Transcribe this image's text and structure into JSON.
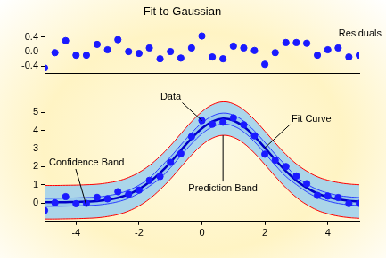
{
  "chart_data": [
    {
      "type": "scatter",
      "title": "Fit to Gaussian",
      "tick_labels": "y",
      "x": [
        -5,
        -4.67,
        -4.33,
        -4,
        -3.67,
        -3.33,
        -3,
        -2.67,
        -2.33,
        -2,
        -1.67,
        -1.33,
        -1,
        -0.67,
        -0.33,
        0,
        0.33,
        0.67,
        1,
        1.33,
        1.67,
        2,
        2.33,
        2.67,
        3,
        3.33,
        3.67,
        4,
        4.33,
        4.67,
        5
      ],
      "xlim": [
        -5,
        5
      ],
      "ylim": [
        -0.6,
        0.7
      ],
      "yticks": [
        -0.4,
        {
          "value": 0,
          "label": "0.0"
        },
        0.4
      ],
      "series": [
        {
          "name": "Residuals",
          "type": "scatter",
          "color": "#1a1aff",
          "marker": "circle",
          "values": [
            -0.45,
            -0.03,
            0.3,
            -0.1,
            -0.1,
            0.2,
            0.05,
            0.33,
            0,
            -0.05,
            0.1,
            -0.2,
            0,
            -0.18,
            0.1,
            0.43,
            -0.15,
            -0.2,
            0.15,
            0.1,
            0.03,
            -0.35,
            -0.03,
            0.25,
            0.25,
            0.23,
            -0.1,
            0.05,
            0.1,
            -0.15,
            -0.1
          ]
        }
      ]
    },
    {
      "type": "line",
      "grid": false,
      "x": [
        -5,
        -4.67,
        -4.33,
        -4,
        -3.67,
        -3.33,
        -3,
        -2.67,
        -2.33,
        -2,
        -1.67,
        -1.33,
        -1,
        -0.67,
        -0.33,
        0,
        0.33,
        0.67,
        1,
        1.33,
        1.67,
        2,
        2.33,
        2.67,
        3,
        3.33,
        3.67,
        4,
        4.33,
        4.67,
        5
      ],
      "xlim": [
        -5,
        5
      ],
      "ylim": [
        -1,
        6.2
      ],
      "xticks": [
        -4,
        -2,
        0,
        2,
        4
      ],
      "yticks": [
        0,
        1,
        2,
        3,
        4,
        5
      ],
      "series": [
        {
          "name": "Prediction Band",
          "type": "band",
          "color": "#ff0000",
          "upper": [
            0.97,
            0.97,
            0.98,
            0.99,
            1.01,
            1.04,
            1.11,
            1.22,
            1.41,
            1.69,
            2.07,
            2.58,
            3.16,
            3.82,
            4.48,
            5.03,
            5.41,
            5.57,
            5.46,
            5.13,
            4.59,
            3.96,
            3.31,
            2.68,
            2.16,
            1.76,
            1.45,
            1.26,
            1.13,
            1.05,
            1.01
          ],
          "lower": [
            -0.87,
            -0.87,
            -0.86,
            -0.85,
            -0.83,
            -0.8,
            -0.73,
            -0.62,
            -0.43,
            -0.15,
            0.23,
            0.74,
            1.32,
            1.98,
            2.64,
            3.19,
            3.57,
            3.73,
            3.62,
            3.29,
            2.75,
            2.12,
            1.47,
            0.84,
            0.32,
            -0.08,
            -0.39,
            -0.58,
            -0.71,
            -0.79,
            -0.83
          ]
        },
        {
          "name": "Confidence Band",
          "type": "band",
          "color": "#2a3cff",
          "upper": [
            0.27,
            0.27,
            0.28,
            0.29,
            0.31,
            0.34,
            0.41,
            0.52,
            0.71,
            0.99,
            1.37,
            1.96,
            2.54,
            3.2,
            3.86,
            4.41,
            4.79,
            4.95,
            4.84,
            4.51,
            3.97,
            3.34,
            2.69,
            2.06,
            1.46,
            1.06,
            0.75,
            0.56,
            0.43,
            0.35,
            0.31
          ],
          "lower": [
            -0.17,
            -0.17,
            -0.16,
            -0.15,
            -0.13,
            -0.1,
            -0.03,
            0.08,
            0.27,
            0.55,
            0.93,
            1.36,
            1.94,
            2.6,
            3.26,
            3.81,
            4.19,
            4.35,
            4.24,
            3.91,
            3.37,
            2.74,
            2.09,
            1.46,
            1.02,
            0.62,
            0.31,
            0.12,
            -0.01,
            -0.09,
            -0.13
          ]
        },
        {
          "name": "Fit Curve",
          "type": "line",
          "color": "#0000c8",
          "line_style": "solid",
          "values": [
            0.05,
            0.05,
            0.06,
            0.07,
            0.09,
            0.12,
            0.19,
            0.3,
            0.49,
            0.77,
            1.15,
            1.66,
            2.24,
            2.9,
            3.56,
            4.11,
            4.49,
            4.65,
            4.54,
            4.21,
            3.67,
            3.04,
            2.39,
            1.76,
            1.24,
            0.84,
            0.53,
            0.34,
            0.21,
            0.13,
            0.09
          ]
        },
        {
          "name": "Data",
          "type": "scatter",
          "color": "#1a1aff",
          "marker": "circle",
          "values": [
            -0.4,
            0.02,
            0.36,
            -0.03,
            -0.01,
            0.32,
            0.24,
            0.63,
            0.49,
            0.72,
            1.25,
            1.46,
            2.24,
            2.72,
            3.66,
            4.54,
            4.34,
            4.45,
            4.69,
            4.31,
            3.7,
            2.69,
            2.36,
            2.01,
            1.49,
            1.07,
            0.43,
            0.39,
            0.31,
            -0.02,
            -0.01
          ]
        }
      ]
    }
  ]
}
